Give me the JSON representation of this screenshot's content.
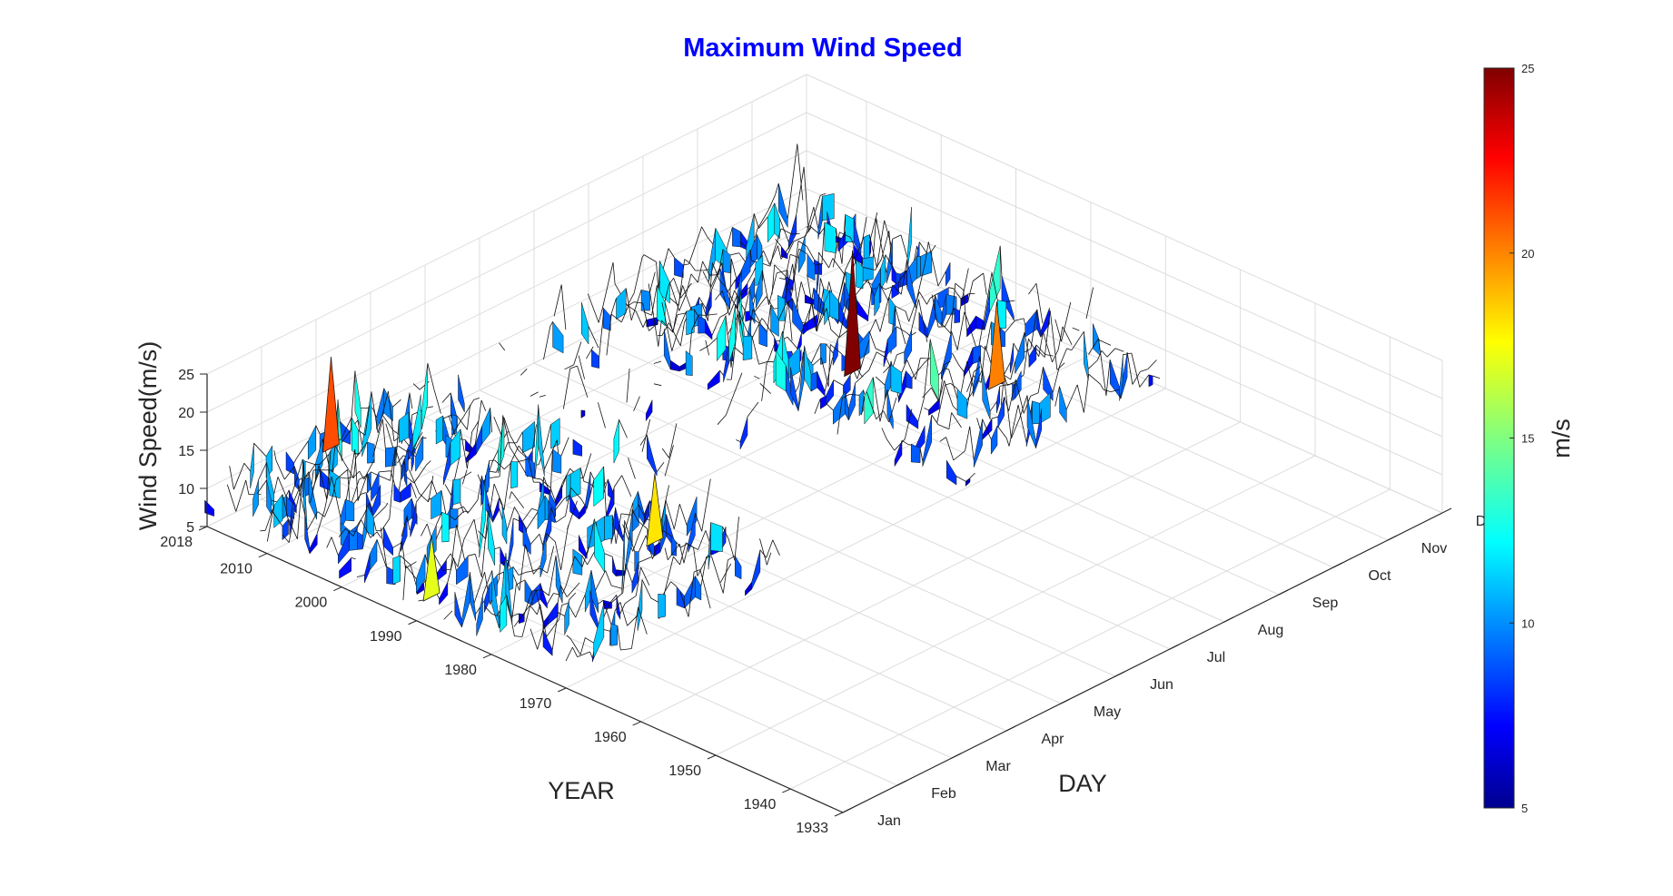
{
  "chart_data": {
    "type": "surface3d",
    "title": "Maximum Wind Speed",
    "title_color": "#0000ff",
    "xlabel": "YEAR",
    "ylabel": "DAY",
    "zlabel": "Wind Speed(m/s)",
    "xticks": [
      "2018",
      "2010",
      "2000",
      "1990",
      "1980",
      "1970",
      "1960",
      "1950",
      "1940",
      "1933"
    ],
    "xtick_values": [
      2018,
      2010,
      2000,
      1990,
      1980,
      1970,
      1960,
      1950,
      1940,
      1933
    ],
    "xlim": [
      1933,
      2018
    ],
    "yticks": [
      "Jan",
      "Feb",
      "Mar",
      "Apr",
      "May",
      "Jun",
      "Jul",
      "Aug",
      "Sep",
      "Oct",
      "Nov",
      "Dec"
    ],
    "ylim": [
      1,
      12
    ],
    "zticks": [
      "5",
      "10",
      "15",
      "20",
      "25"
    ],
    "zlim": [
      5,
      25
    ],
    "grid": true,
    "colormap": "jet",
    "colorbar": {
      "label": "m/s",
      "ticks": [
        "5",
        "10",
        "15",
        "20",
        "25"
      ],
      "range": [
        5,
        25
      ],
      "position": "right"
    },
    "data_coverage": [
      {
        "years": [
          1970,
          2018
        ],
        "months": [
          1,
          5
        ],
        "description": "dense daily data"
      },
      {
        "years": [
          1970,
          2018
        ],
        "months": [
          8,
          12
        ],
        "description": "dense daily data"
      },
      {
        "years": [
          1987,
          2018
        ],
        "months": [
          5,
          8
        ],
        "description": "sparse daily data"
      }
    ],
    "notable_peaks": [
      {
        "year": 1988,
        "day": "Jan",
        "value": 17
      },
      {
        "year": 2016,
        "day": "Mar",
        "value": 21
      },
      {
        "year": 1980,
        "day": "Apr",
        "value": 18
      },
      {
        "year": 1990,
        "day": "Sep",
        "value": 25
      },
      {
        "year": 1978,
        "day": "Oct",
        "value": 20
      }
    ]
  }
}
